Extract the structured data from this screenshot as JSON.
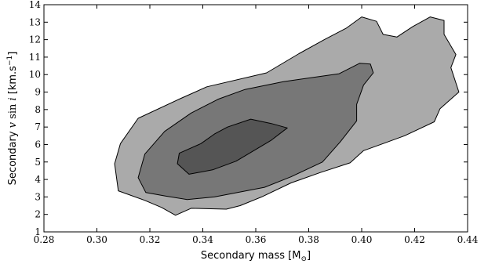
{
  "chart_data": {
    "type": "contour",
    "title": "",
    "xlabel_text": "Secondary mass [M",
    "xlabel_sub": "⊙",
    "xlabel_end": "]",
    "ylabel_text": "Secondary ",
    "ylabel_v": "v",
    "ylabel_sin": " sin ",
    "ylabel_i": "i",
    "ylabel_units": " [km.s",
    "ylabel_exp": "−1",
    "ylabel_end": "]",
    "xlim": [
      0.28,
      0.44
    ],
    "ylim": [
      1,
      14
    ],
    "xticks": [
      "0.28",
      "0.30",
      "0.32",
      "0.34",
      "0.36",
      "0.38",
      "0.40",
      "0.42",
      "0.44"
    ],
    "yticks": [
      "1",
      "2",
      "3",
      "4",
      "5",
      "6",
      "7",
      "8",
      "9",
      "10",
      "11",
      "12",
      "13",
      "14"
    ],
    "grid": false,
    "levels": [
      {
        "name": "outer",
        "color": "#aaaaaa",
        "points": [
          [
            0.3297,
            1.95
          ],
          [
            0.3356,
            2.35
          ],
          [
            0.3489,
            2.3
          ],
          [
            0.3541,
            2.5
          ],
          [
            0.3622,
            3.0
          ],
          [
            0.3733,
            3.8
          ],
          [
            0.3844,
            4.4
          ],
          [
            0.3956,
            4.95
          ],
          [
            0.4007,
            5.65
          ],
          [
            0.4081,
            6.05
          ],
          [
            0.4162,
            6.5
          ],
          [
            0.4274,
            7.3
          ],
          [
            0.4296,
            8.05
          ],
          [
            0.4367,
            9.0
          ],
          [
            0.4337,
            10.4
          ],
          [
            0.4356,
            11.15
          ],
          [
            0.4311,
            12.3
          ],
          [
            0.4311,
            13.1
          ],
          [
            0.4259,
            13.3
          ],
          [
            0.4193,
            12.75
          ],
          [
            0.4133,
            12.15
          ],
          [
            0.4081,
            12.3
          ],
          [
            0.4056,
            13.05
          ],
          [
            0.4,
            13.3
          ],
          [
            0.3941,
            12.65
          ],
          [
            0.3859,
            12.0
          ],
          [
            0.3763,
            11.2
          ],
          [
            0.3641,
            10.1
          ],
          [
            0.3415,
            9.3
          ],
          [
            0.3311,
            8.6
          ],
          [
            0.3156,
            7.5
          ],
          [
            0.3089,
            6.05
          ],
          [
            0.3067,
            4.9
          ],
          [
            0.3081,
            3.35
          ],
          [
            0.3181,
            2.8
          ],
          [
            0.3244,
            2.4
          ]
        ]
      },
      {
        "name": "middle",
        "color": "#777777",
        "points": [
          [
            0.3341,
            2.85
          ],
          [
            0.3444,
            3.0
          ],
          [
            0.3633,
            3.55
          ],
          [
            0.3733,
            4.15
          ],
          [
            0.3852,
            5.0
          ],
          [
            0.3919,
            6.15
          ],
          [
            0.3981,
            7.35
          ],
          [
            0.3981,
            8.3
          ],
          [
            0.4007,
            9.4
          ],
          [
            0.4044,
            10.1
          ],
          [
            0.4033,
            10.6
          ],
          [
            0.3993,
            10.65
          ],
          [
            0.3915,
            10.05
          ],
          [
            0.3704,
            9.6
          ],
          [
            0.3559,
            9.15
          ],
          [
            0.3459,
            8.6
          ],
          [
            0.3356,
            7.8
          ],
          [
            0.3256,
            6.75
          ],
          [
            0.3181,
            5.45
          ],
          [
            0.3156,
            4.1
          ],
          [
            0.3185,
            3.25
          ],
          [
            0.3259,
            3.05
          ]
        ]
      },
      {
        "name": "inner",
        "color": "#555555",
        "points": [
          [
            0.3348,
            4.3
          ],
          [
            0.3437,
            4.55
          ],
          [
            0.3526,
            5.05
          ],
          [
            0.3659,
            6.25
          ],
          [
            0.3719,
            6.95
          ],
          [
            0.3659,
            7.2
          ],
          [
            0.3581,
            7.45
          ],
          [
            0.3493,
            7.0
          ],
          [
            0.3444,
            6.6
          ],
          [
            0.3393,
            6.05
          ],
          [
            0.3311,
            5.5
          ],
          [
            0.3304,
            4.9
          ]
        ]
      }
    ]
  }
}
